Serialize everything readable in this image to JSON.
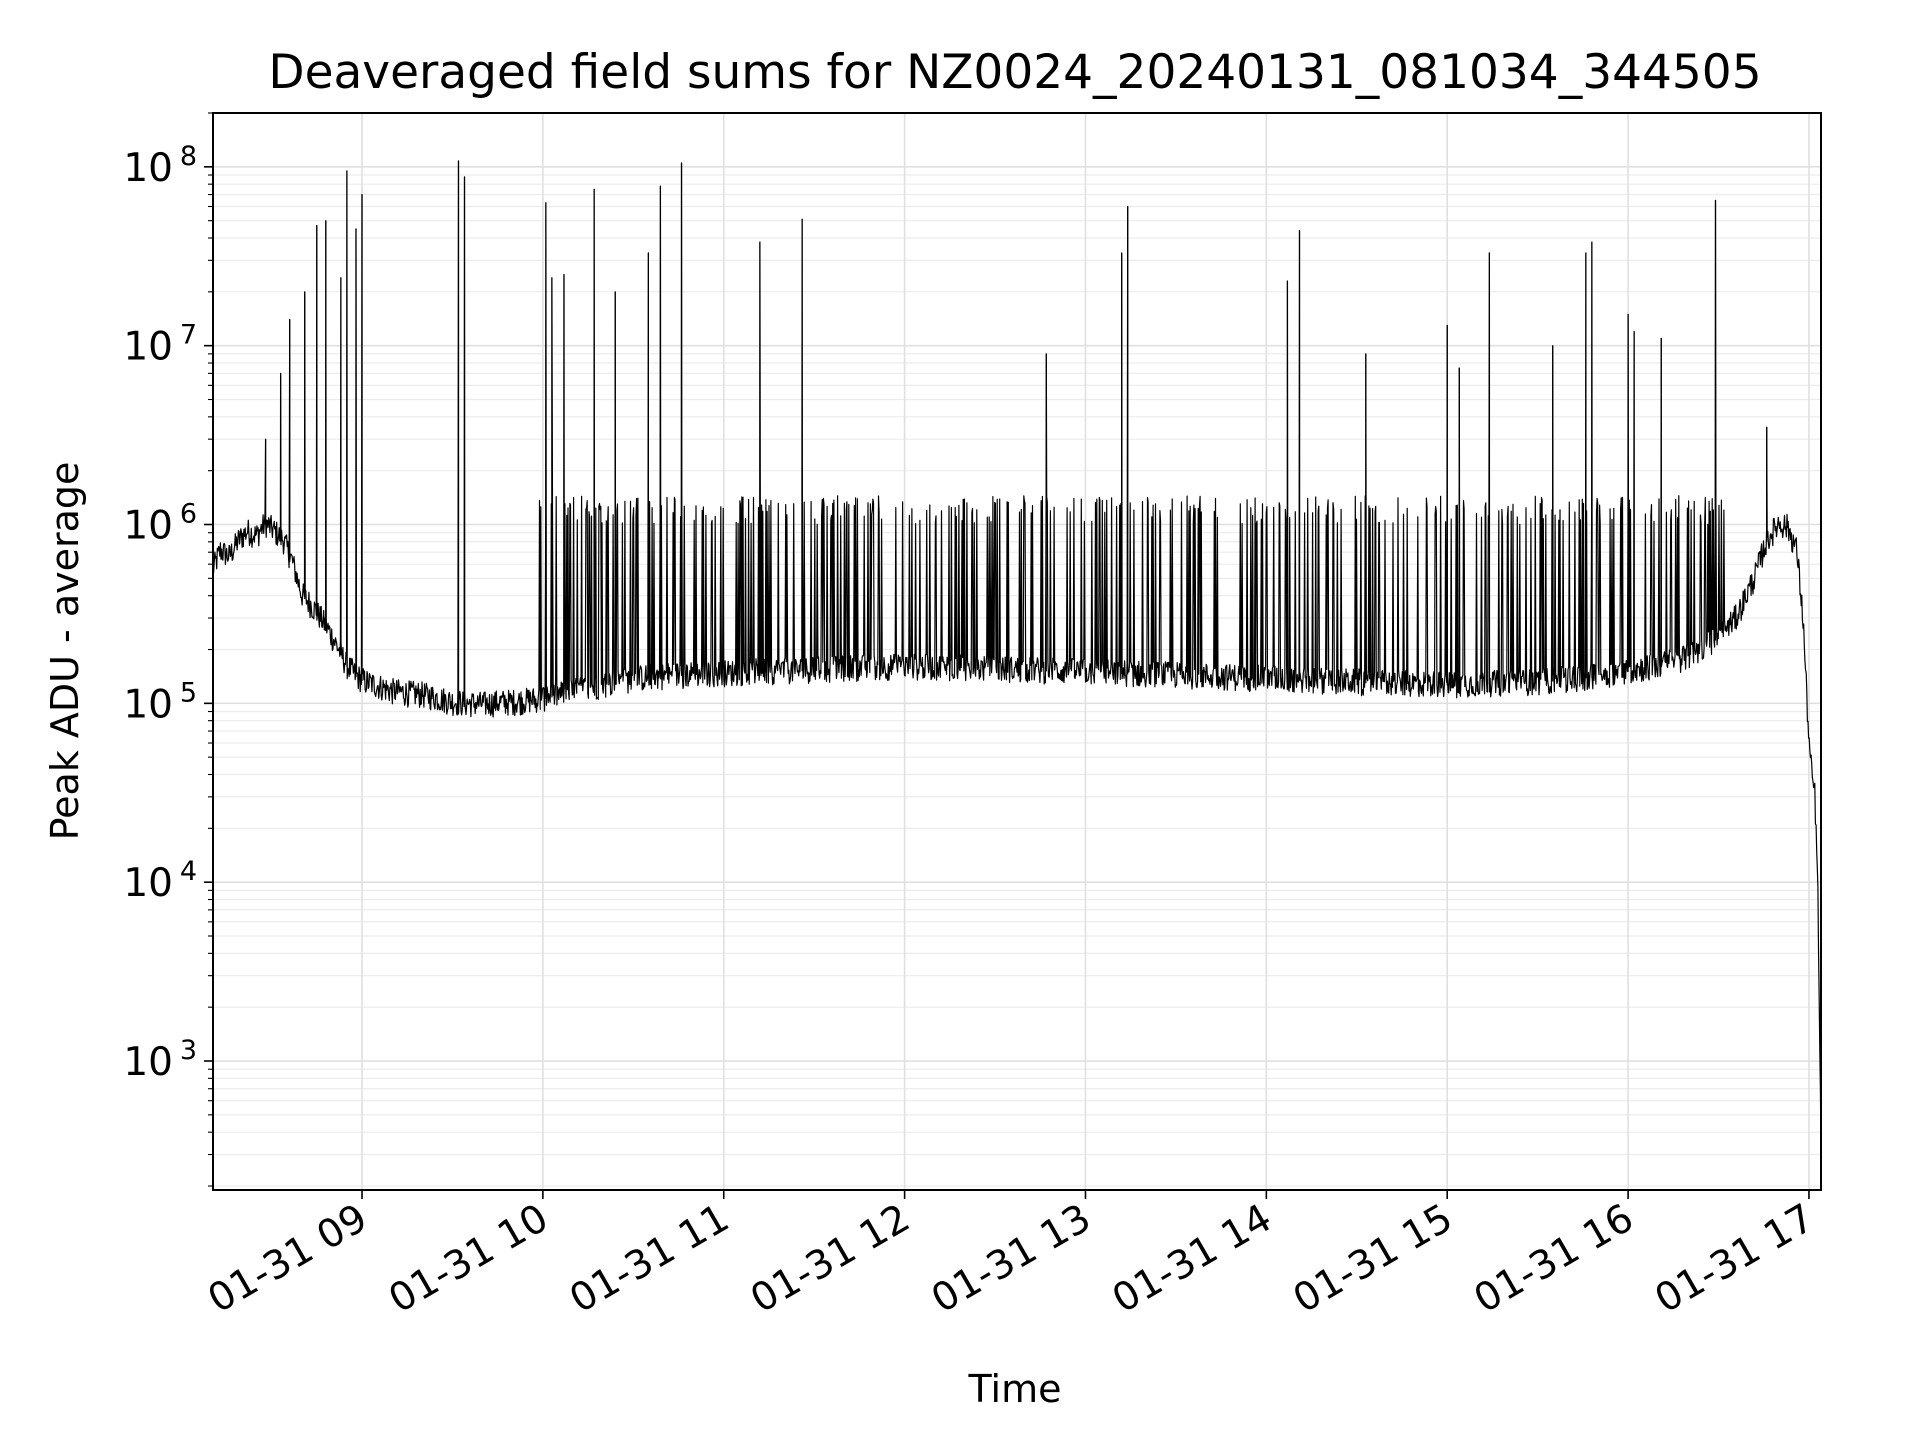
{
  "chart_data": {
    "type": "line",
    "title": "Deaveraged field sums for NZ0024_20240131_081034_344505",
    "xlabel": "Time",
    "ylabel": "Peak ADU - average",
    "y_scale": "log",
    "ylim": [
      190,
      200000000
    ],
    "xlim": [
      "2024-01-31 08:10:34",
      "2024-01-31 17:04:00"
    ],
    "grid": true,
    "grid_minor": true,
    "line_color": "#000000",
    "x_ticks": [
      {
        "value": "2024-01-31 09:00",
        "label": "01-31 09"
      },
      {
        "value": "2024-01-31 10:00",
        "label": "01-31 10"
      },
      {
        "value": "2024-01-31 11:00",
        "label": "01-31 11"
      },
      {
        "value": "2024-01-31 12:00",
        "label": "01-31 12"
      },
      {
        "value": "2024-01-31 13:00",
        "label": "01-31 13"
      },
      {
        "value": "2024-01-31 14:00",
        "label": "01-31 14"
      },
      {
        "value": "2024-01-31 15:00",
        "label": "01-31 15"
      },
      {
        "value": "2024-01-31 16:00",
        "label": "01-31 16"
      },
      {
        "value": "2024-01-31 17:00",
        "label": "01-31 17"
      }
    ],
    "y_ticks": [
      {
        "value": 1000,
        "base": "10",
        "exp": "3"
      },
      {
        "value": 10000,
        "base": "10",
        "exp": "4"
      },
      {
        "value": 100000,
        "base": "10",
        "exp": "5"
      },
      {
        "value": 1000000,
        "base": "10",
        "exp": "6"
      },
      {
        "value": 10000000,
        "base": "10",
        "exp": "7"
      },
      {
        "value": 100000000,
        "base": "10",
        "exp": "8"
      }
    ],
    "series": [
      {
        "x": [
          "2024-01-31 08:10:34",
          "2024-01-31 08:13",
          "2024-01-31 08:16",
          "2024-01-31 08:19",
          "2024-01-31 08:22",
          "2024-01-31 08:25",
          "2024-01-31 08:28",
          "2024-01-31 08:31",
          "2024-01-31 08:34",
          "2024-01-31 08:37",
          "2024-01-31 08:40",
          "2024-01-31 08:43",
          "2024-01-31 08:46",
          "2024-01-31 08:49",
          "2024-01-31 08:52",
          "2024-01-31 08:55",
          "2024-01-31 08:58",
          "2024-01-31 09:01",
          "2024-01-31 09:04",
          "2024-01-31 09:07",
          "2024-01-31 09:10",
          "2024-01-31 09:15",
          "2024-01-31 09:20",
          "2024-01-31 09:25",
          "2024-01-31 09:30",
          "2024-01-31 09:35",
          "2024-01-31 09:40",
          "2024-01-31 09:45",
          "2024-01-31 09:50",
          "2024-01-31 09:55",
          "2024-01-31 10:00",
          "2024-01-31 10:05",
          "2024-01-31 10:10",
          "2024-01-31 10:15",
          "2024-01-31 10:20",
          "2024-01-31 10:25",
          "2024-01-31 10:30",
          "2024-01-31 10:35",
          "2024-01-31 10:40",
          "2024-01-31 10:45",
          "2024-01-31 10:50",
          "2024-01-31 10:55",
          "2024-01-31 11:00",
          "2024-01-31 11:10",
          "2024-01-31 11:20",
          "2024-01-31 11:30",
          "2024-01-31 11:40",
          "2024-01-31 11:50",
          "2024-01-31 12:00",
          "2024-01-31 12:10",
          "2024-01-31 12:20",
          "2024-01-31 12:30",
          "2024-01-31 12:40",
          "2024-01-31 12:50",
          "2024-01-31 13:00",
          "2024-01-31 13:10",
          "2024-01-31 13:20",
          "2024-01-31 13:30",
          "2024-01-31 13:40",
          "2024-01-31 13:50",
          "2024-01-31 14:00",
          "2024-01-31 14:10",
          "2024-01-31 14:20",
          "2024-01-31 14:30",
          "2024-01-31 14:40",
          "2024-01-31 14:50",
          "2024-01-31 15:00",
          "2024-01-31 15:10",
          "2024-01-31 15:20",
          "2024-01-31 15:30",
          "2024-01-31 15:40",
          "2024-01-31 15:50",
          "2024-01-31 16:00",
          "2024-01-31 16:10",
          "2024-01-31 16:20",
          "2024-01-31 16:30",
          "2024-01-31 16:36",
          "2024-01-31 16:42",
          "2024-01-31 16:46",
          "2024-01-31 16:50",
          "2024-01-31 16:53",
          "2024-01-31 16:56",
          "2024-01-31 16:58",
          "2024-01-31 17:00",
          "2024-01-31 17:01",
          "2024-01-31 17:02",
          "2024-01-31 17:03",
          "2024-01-31 17:04"
        ],
        "y": [
          550000,
          700000,
          650000,
          800000,
          900000,
          850000,
          1000000,
          900000,
          800000,
          600000,
          400000,
          350000,
          300000,
          250000,
          200000,
          160000,
          140000,
          130000,
          125000,
          120000,
          115000,
          112000,
          110000,
          105000,
          100000,
          98000,
          97000,
          99000,
          100000,
          102000,
          105000,
          110000,
          115000,
          120000,
          125000,
          130000,
          135000,
          138000,
          140000,
          142000,
          143000,
          144000,
          145000,
          148000,
          150000,
          152000,
          155000,
          157000,
          158000,
          157000,
          156000,
          154000,
          152000,
          150000,
          148000,
          146000,
          144000,
          142000,
          140000,
          138000,
          136000,
          134000,
          132000,
          130000,
          128000,
          127000,
          126000,
          127000,
          128000,
          130000,
          135000,
          140000,
          150000,
          160000,
          180000,
          230000,
          300000,
          500000,
          800000,
          1000000,
          950000,
          700000,
          300000,
          60000,
          38000,
          30000,
          8000,
          300
        ],
        "spikes": [
          {
            "x": "2024-01-31 08:28",
            "y": 3000000
          },
          {
            "x": "2024-01-31 08:33",
            "y": 7000000
          },
          {
            "x": "2024-01-31 08:36",
            "y": 14000000
          },
          {
            "x": "2024-01-31 08:41",
            "y": 20000000
          },
          {
            "x": "2024-01-31 08:45",
            "y": 47000000
          },
          {
            "x": "2024-01-31 08:48",
            "y": 50000000
          },
          {
            "x": "2024-01-31 08:53",
            "y": 24000000
          },
          {
            "x": "2024-01-31 08:55",
            "y": 95000000
          },
          {
            "x": "2024-01-31 08:58",
            "y": 45000000
          },
          {
            "x": "2024-01-31 09:00",
            "y": 70000000
          },
          {
            "x": "2024-01-31 09:32",
            "y": 108000000
          },
          {
            "x": "2024-01-31 09:34",
            "y": 88000000
          },
          {
            "x": "2024-01-31 10:01",
            "y": 63000000
          },
          {
            "x": "2024-01-31 10:03",
            "y": 24000000
          },
          {
            "x": "2024-01-31 10:07",
            "y": 25000000
          },
          {
            "x": "2024-01-31 10:17",
            "y": 75000000
          },
          {
            "x": "2024-01-31 10:24",
            "y": 20000000
          },
          {
            "x": "2024-01-31 10:35",
            "y": 33000000
          },
          {
            "x": "2024-01-31 10:39",
            "y": 78000000
          },
          {
            "x": "2024-01-31 10:46",
            "y": 105000000
          },
          {
            "x": "2024-01-31 11:12",
            "y": 38000000
          },
          {
            "x": "2024-01-31 11:26",
            "y": 51000000
          },
          {
            "x": "2024-01-31 12:47",
            "y": 9000000
          },
          {
            "x": "2024-01-31 13:12",
            "y": 33000000
          },
          {
            "x": "2024-01-31 13:14",
            "y": 60000000
          },
          {
            "x": "2024-01-31 14:07",
            "y": 23000000
          },
          {
            "x": "2024-01-31 14:11",
            "y": 44000000
          },
          {
            "x": "2024-01-31 14:33",
            "y": 9000000
          },
          {
            "x": "2024-01-31 15:00",
            "y": 13000000
          },
          {
            "x": "2024-01-31 15:04",
            "y": 7500000
          },
          {
            "x": "2024-01-31 15:14",
            "y": 33000000
          },
          {
            "x": "2024-01-31 15:35",
            "y": 10000000
          },
          {
            "x": "2024-01-31 15:46",
            "y": 33000000
          },
          {
            "x": "2024-01-31 15:48",
            "y": 38000000
          },
          {
            "x": "2024-01-31 16:00",
            "y": 15000000
          },
          {
            "x": "2024-01-31 16:02",
            "y": 12000000
          },
          {
            "x": "2024-01-31 16:11",
            "y": 11000000
          },
          {
            "x": "2024-01-31 16:29",
            "y": 65000000
          },
          {
            "x": "2024-01-31 16:46",
            "y": 3500000
          }
        ]
      }
    ]
  }
}
